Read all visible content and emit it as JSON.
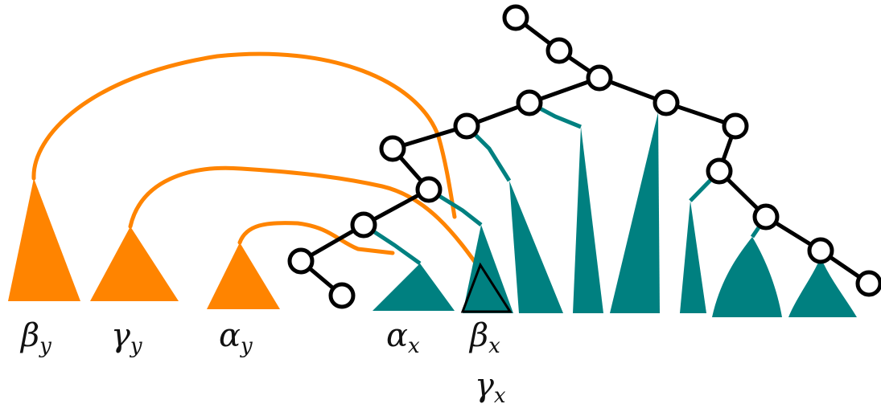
{
  "colors": {
    "orange": "#ff8400",
    "teal": "#008080",
    "black": "#000000"
  },
  "labels": {
    "beta_y": {
      "base": "β",
      "sub": "y"
    },
    "gamma_y": {
      "base": "γ",
      "sub": "y"
    },
    "alpha_y": {
      "base": "α",
      "sub": "y"
    },
    "alpha_x": {
      "base": "α",
      "sub": "x"
    },
    "beta_x": {
      "base": "β",
      "sub": "x"
    },
    "gamma_x": {
      "base": "γ",
      "sub": "x"
    }
  }
}
